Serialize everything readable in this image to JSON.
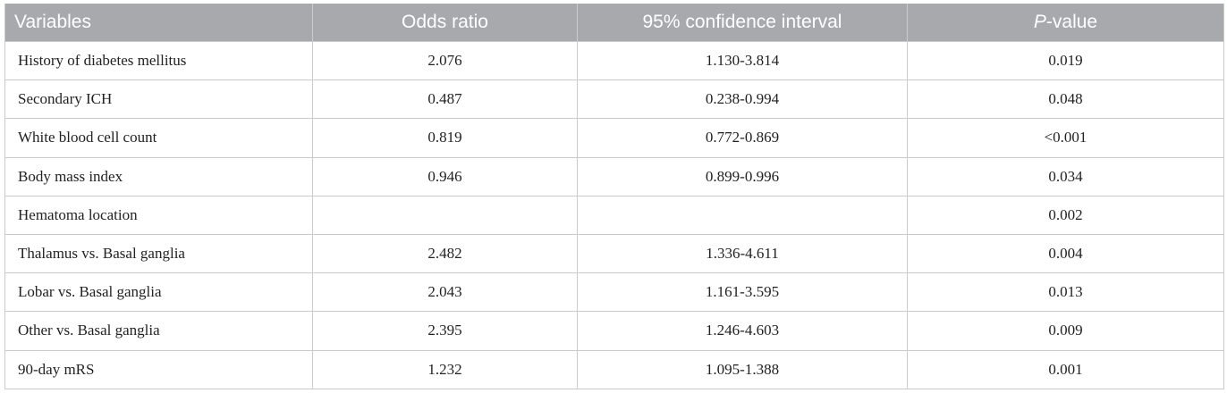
{
  "table": {
    "headers": {
      "variables": "Variables",
      "odds_ratio": "Odds ratio",
      "ci": "95% confidence interval",
      "p_italic": "P",
      "p_rest": "-value"
    },
    "rows": [
      {
        "variable": "History of diabetes mellitus",
        "odds_ratio": "2.076",
        "ci": "1.130-3.814",
        "p": "0.019"
      },
      {
        "variable": "Secondary ICH",
        "odds_ratio": "0.487",
        "ci": "0.238-0.994",
        "p": "0.048"
      },
      {
        "variable": "White blood cell count",
        "odds_ratio": "0.819",
        "ci": "0.772-0.869",
        "p": "<0.001"
      },
      {
        "variable": "Body mass index",
        "odds_ratio": "0.946",
        "ci": "0.899-0.996",
        "p": "0.034"
      },
      {
        "variable": "Hematoma location",
        "odds_ratio": "",
        "ci": "",
        "p": "0.002"
      },
      {
        "variable": "Thalamus vs. Basal ganglia",
        "odds_ratio": "2.482",
        "ci": "1.336-4.611",
        "p": "0.004"
      },
      {
        "variable": "Lobar vs. Basal ganglia",
        "odds_ratio": "2.043",
        "ci": "1.161-3.595",
        "p": "0.013"
      },
      {
        "variable": "Other vs. Basal ganglia",
        "odds_ratio": "2.395",
        "ci": "1.246-4.603",
        "p": "0.009"
      },
      {
        "variable": "90-day mRS",
        "odds_ratio": "1.232",
        "ci": "1.095-1.388",
        "p": "0.001"
      }
    ]
  }
}
